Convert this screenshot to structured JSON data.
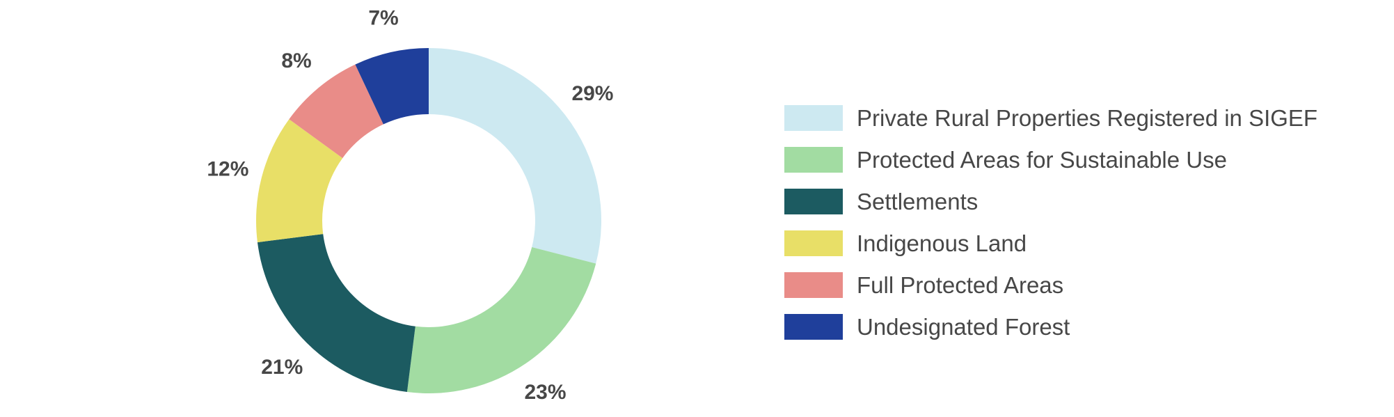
{
  "chart_data": {
    "type": "pie",
    "donut": true,
    "categories": [
      "Private Rural Properties Registered in SIGEF",
      "Protected Areas for Sustainable Use",
      "Settlements",
      "Indigenous Land",
      "Full Protected Areas",
      "Undesignated Forest"
    ],
    "values": [
      29,
      23,
      21,
      12,
      8,
      7
    ],
    "value_labels": [
      "29%",
      "23%",
      "21%",
      "12%",
      "8%",
      "7%"
    ],
    "colors": [
      "#cde9f1",
      "#a2dca2",
      "#1c5b61",
      "#e8df67",
      "#e98c88",
      "#1f3f9b"
    ],
    "start_angle_deg": 0,
    "direction": "clockwise",
    "legend_position": "right",
    "title": "",
    "xlabel": "",
    "ylabel": ""
  }
}
